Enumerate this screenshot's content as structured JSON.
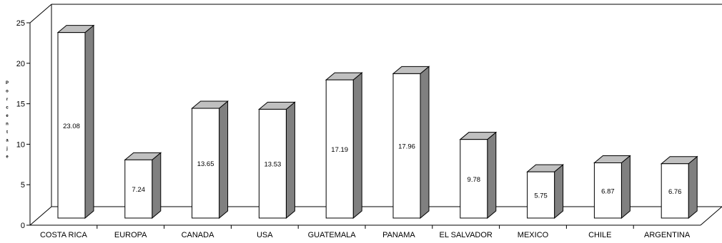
{
  "chart_data": {
    "type": "bar",
    "style": "3d",
    "categories": [
      "COSTA RICA",
      "EUROPA",
      "CANADA",
      "USA",
      "GUATEMALA",
      "PANAMA",
      "EL SALVADOR",
      "MEXICO",
      "CHILE",
      "ARGENTINA"
    ],
    "values": [
      23.08,
      7.24,
      13.65,
      13.53,
      17.19,
      17.96,
      9.78,
      5.75,
      6.87,
      6.76
    ],
    "data_labels": [
      "23.08",
      "7.24",
      "13.65",
      "13.53",
      "17.19",
      "17.96",
      "9.78",
      "5.75",
      "6.87",
      "6.76"
    ],
    "title": "",
    "xlabel": "",
    "ylabel": "Porcentaje",
    "ylim": [
      0,
      25
    ],
    "yticks": [
      0,
      5,
      10,
      15,
      20,
      25
    ],
    "grid": false,
    "colors": {
      "bar_front": "#ffffff",
      "bar_side": "#808080",
      "bar_top": "#c0c0c0",
      "outline": "#000000"
    }
  }
}
